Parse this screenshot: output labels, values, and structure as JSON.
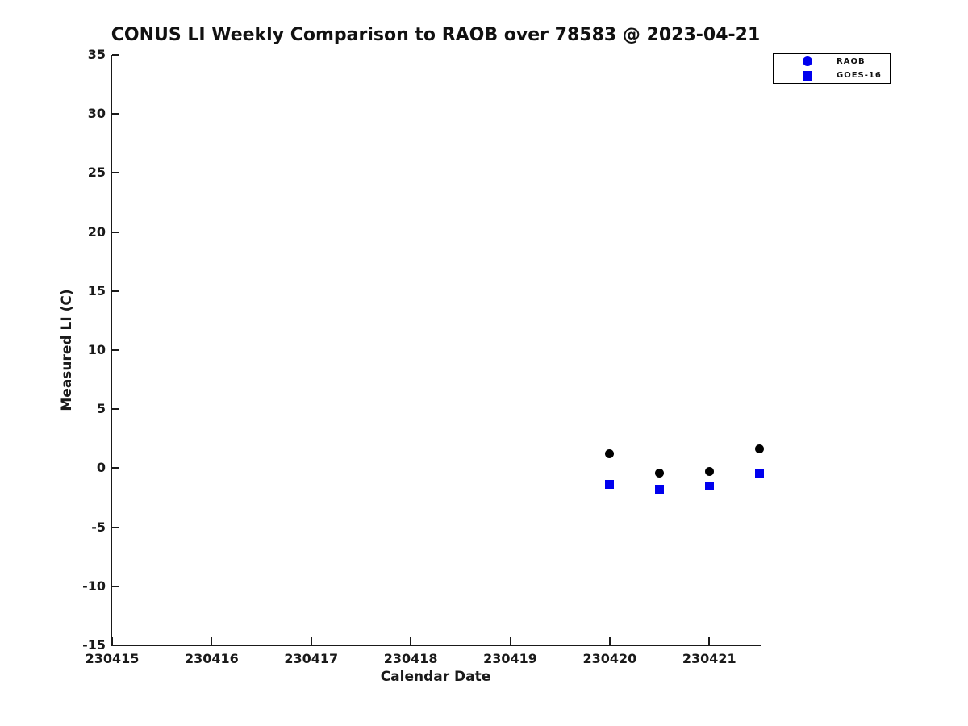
{
  "chart_data": {
    "type": "scatter",
    "title": "CONUS LI Weekly Comparison to RAOB over 78583 @ 2023-04-21",
    "xlabel": "Calendar Date",
    "ylabel": "Measured LI (C)",
    "xlim": [
      230415,
      230421.5
    ],
    "ylim": [
      -15,
      35
    ],
    "x_ticks": [
      "230415",
      "230416",
      "230417",
      "230418",
      "230419",
      "230420",
      "230421"
    ],
    "y_ticks": [
      35,
      30,
      25,
      20,
      15,
      10,
      5,
      0,
      -5,
      -10,
      -15
    ],
    "grid": false,
    "legend_position": "top-right",
    "series": [
      {
        "name": "RAOB",
        "marker": "circle",
        "color": "#000000",
        "legend_marker_color": "#0000ee",
        "points": [
          [
            230420.0,
            1.2
          ],
          [
            230420.5,
            -0.4
          ],
          [
            230421.0,
            -0.3
          ],
          [
            230421.5,
            1.6
          ]
        ]
      },
      {
        "name": "GOES-16",
        "marker": "square",
        "color": "#0000ee",
        "legend_marker_color": "#0000ee",
        "points": [
          [
            230420.0,
            -1.4
          ],
          [
            230420.5,
            -1.8
          ],
          [
            230421.0,
            -1.5
          ],
          [
            230421.5,
            -0.4
          ]
        ]
      }
    ]
  }
}
